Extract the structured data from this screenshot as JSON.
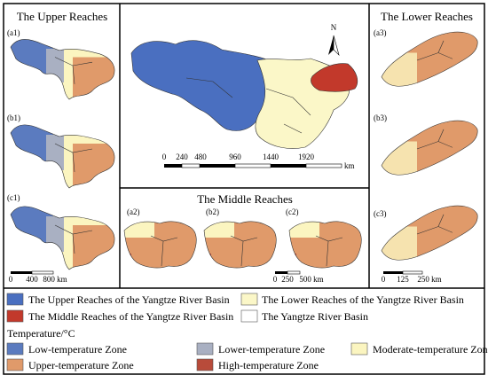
{
  "panels": {
    "upper": {
      "title": "The Upper Reaches",
      "labels": [
        "(a1)",
        "(b1)",
        "(c1)"
      ],
      "scale": [
        "0",
        "400",
        "800 km"
      ]
    },
    "overview": {
      "north": "N",
      "scale": [
        "0",
        "240",
        "480",
        "960",
        "1440",
        "1920"
      ],
      "unit": "km"
    },
    "middle": {
      "title": "The Middle Reaches",
      "labels": [
        "(a2)",
        "(b2)",
        "(c2)"
      ],
      "scale": [
        "0",
        "250",
        "500 km"
      ]
    },
    "lower": {
      "title": "The Lower Reaches",
      "labels": [
        "(a3)",
        "(b3)",
        "(c3)"
      ],
      "scale": [
        "0",
        "125",
        "250 km"
      ]
    }
  },
  "legend": {
    "basins": [
      "The Upper Reaches of the Yangtze River Basin",
      "The Lower Reaches of the Yangtze River Basin",
      "The Middle Reaches of the Yangtze River Basin",
      "The Yangtze River Basin"
    ],
    "temperature_title": "Temperature/°C",
    "zones": [
      "Low-temperature Zone",
      "Lower-temperature Zone",
      "Moderate-temperature Zone",
      "Upper-temperature Zone",
      "High-temperature Zone"
    ]
  }
}
